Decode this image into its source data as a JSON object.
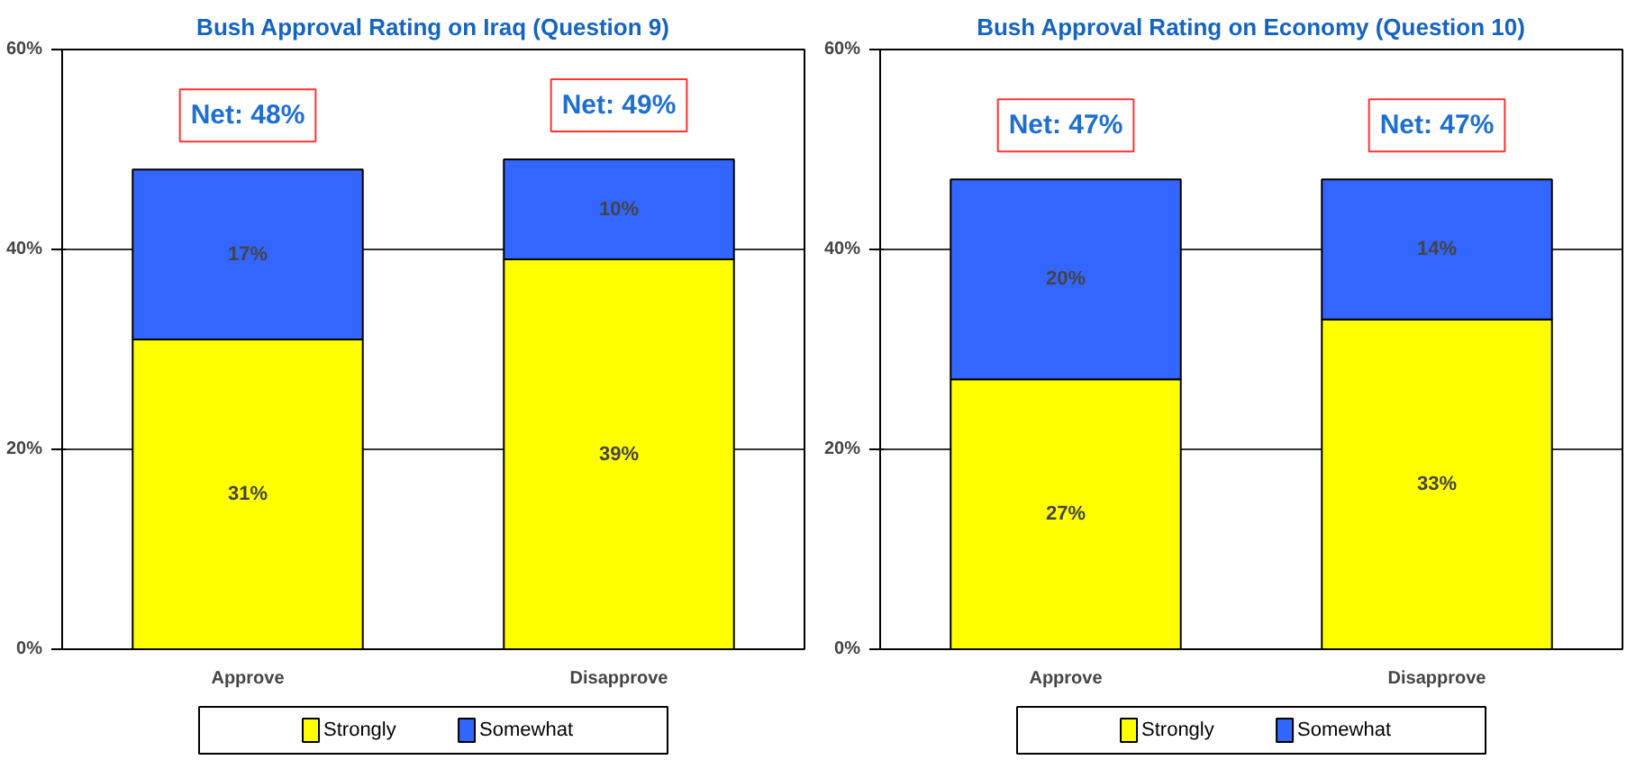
{
  "chart_data": [
    {
      "type": "bar",
      "title": "Bush Approval Rating on Iraq (Question 9)",
      "categories": [
        "Approve",
        "Disapprove"
      ],
      "stacked": true,
      "series": [
        {
          "name": "Strongly",
          "color": "#ffff00",
          "values": [
            31,
            39
          ],
          "value_labels": [
            "31%",
            "39%"
          ]
        },
        {
          "name": "Somewhat",
          "color": "#3366ff",
          "values": [
            17,
            10
          ],
          "value_labels": [
            "17%",
            "10%"
          ]
        }
      ],
      "ylim": [
        0,
        60
      ],
      "yticks": [
        {
          "value": 0,
          "label": "0%"
        },
        {
          "value": 20,
          "label": "20%"
        },
        {
          "value": 40,
          "label": "40%"
        },
        {
          "value": 60,
          "label": "60%"
        }
      ],
      "grid": "y",
      "legend": "bottom",
      "annotations": [
        "Net: 48%",
        "Net: 49%"
      ]
    },
    {
      "type": "bar",
      "title": "Bush Approval Rating on Economy (Question 10)",
      "categories": [
        "Approve",
        "Disapprove"
      ],
      "stacked": true,
      "series": [
        {
          "name": "Strongly",
          "color": "#ffff00",
          "values": [
            27,
            33
          ],
          "value_labels": [
            "27%",
            "33%"
          ]
        },
        {
          "name": "Somewhat",
          "color": "#3366ff",
          "values": [
            20,
            14
          ],
          "value_labels": [
            "20%",
            "14%"
          ]
        }
      ],
      "ylim": [
        0,
        60
      ],
      "yticks": [
        {
          "value": 0,
          "label": "0%"
        },
        {
          "value": 20,
          "label": "20%"
        },
        {
          "value": 40,
          "label": "40%"
        },
        {
          "value": 60,
          "label": "60%"
        }
      ],
      "grid": "y",
      "legend": "bottom",
      "annotations": [
        "Net: 47%",
        "Net: 47%"
      ]
    }
  ]
}
